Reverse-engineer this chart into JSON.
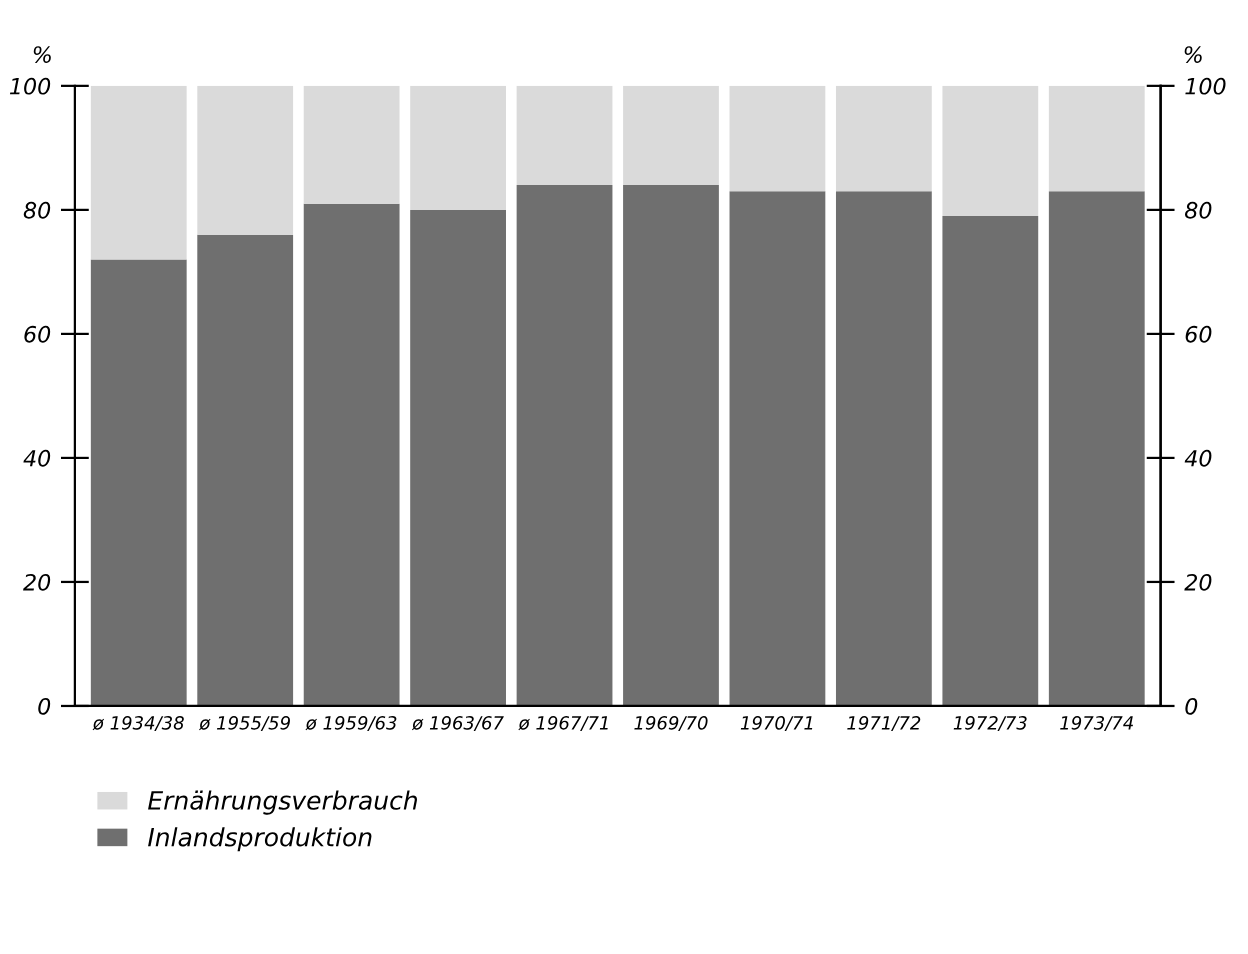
{
  "chart_data": {
    "type": "bar",
    "stacked": true,
    "categories": [
      "ø 1934/38",
      "ø 1955/59",
      "ø 1959/63",
      "ø 1963/67",
      "ø 1967/71",
      "1969/70",
      "1970/71",
      "1971/72",
      "1972/73",
      "1973/74"
    ],
    "series": [
      {
        "name": "Inlandsproduktion",
        "color": "#6f6f6f",
        "values": [
          72,
          76,
          81,
          80,
          84,
          84,
          83,
          83,
          79,
          83
        ]
      },
      {
        "name": "Ernährungsverbrauch",
        "color": "#dadada",
        "values": [
          28,
          24,
          19,
          20,
          16,
          16,
          17,
          17,
          21,
          17
        ]
      }
    ],
    "ylabel": "%",
    "y2label": "%",
    "ylim": [
      0,
      100
    ],
    "yticks": [
      0,
      20,
      40,
      60,
      80,
      100
    ],
    "y2lim": [
      0,
      100
    ],
    "y2ticks": [
      0,
      20,
      40,
      60,
      80,
      100
    ],
    "grid": false,
    "legend": "bottom left"
  }
}
